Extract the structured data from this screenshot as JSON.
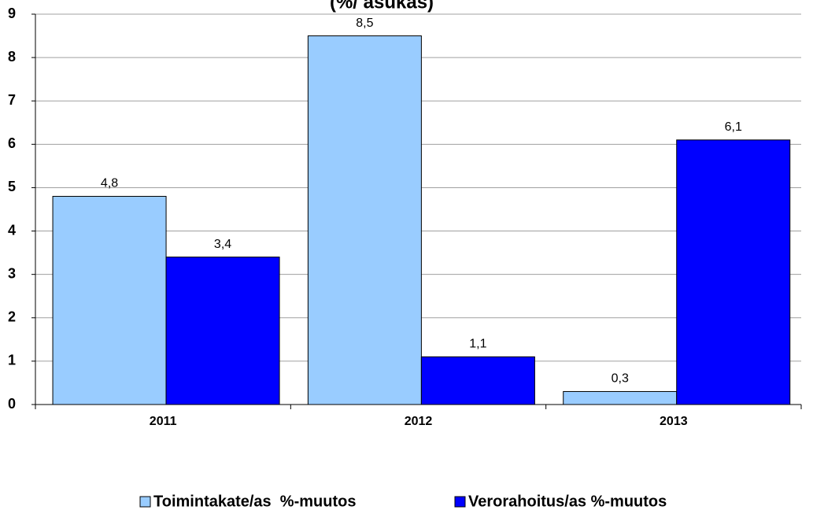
{
  "chart_data": {
    "type": "bar",
    "title": "(%/ asukas)",
    "categories": [
      "2011",
      "2012",
      "2013"
    ],
    "series": [
      {
        "name": "Toimintakate/as  %-muutos",
        "color": "#99ccff",
        "values": [
          4.8,
          8.5,
          0.3
        ],
        "value_labels": [
          "4,8",
          "8,5",
          "0,3"
        ]
      },
      {
        "name": "Verorahoitus/as %-muutos",
        "color": "#0000ff",
        "values": [
          3.4,
          1.1,
          6.1
        ],
        "value_labels": [
          "3,4",
          "1,1",
          "6,1"
        ]
      }
    ],
    "ylim": [
      0,
      9
    ],
    "yticks": [
      0,
      1,
      2,
      3,
      4,
      5,
      6,
      7,
      8,
      9
    ],
    "grid": true,
    "legend": "bottom"
  }
}
